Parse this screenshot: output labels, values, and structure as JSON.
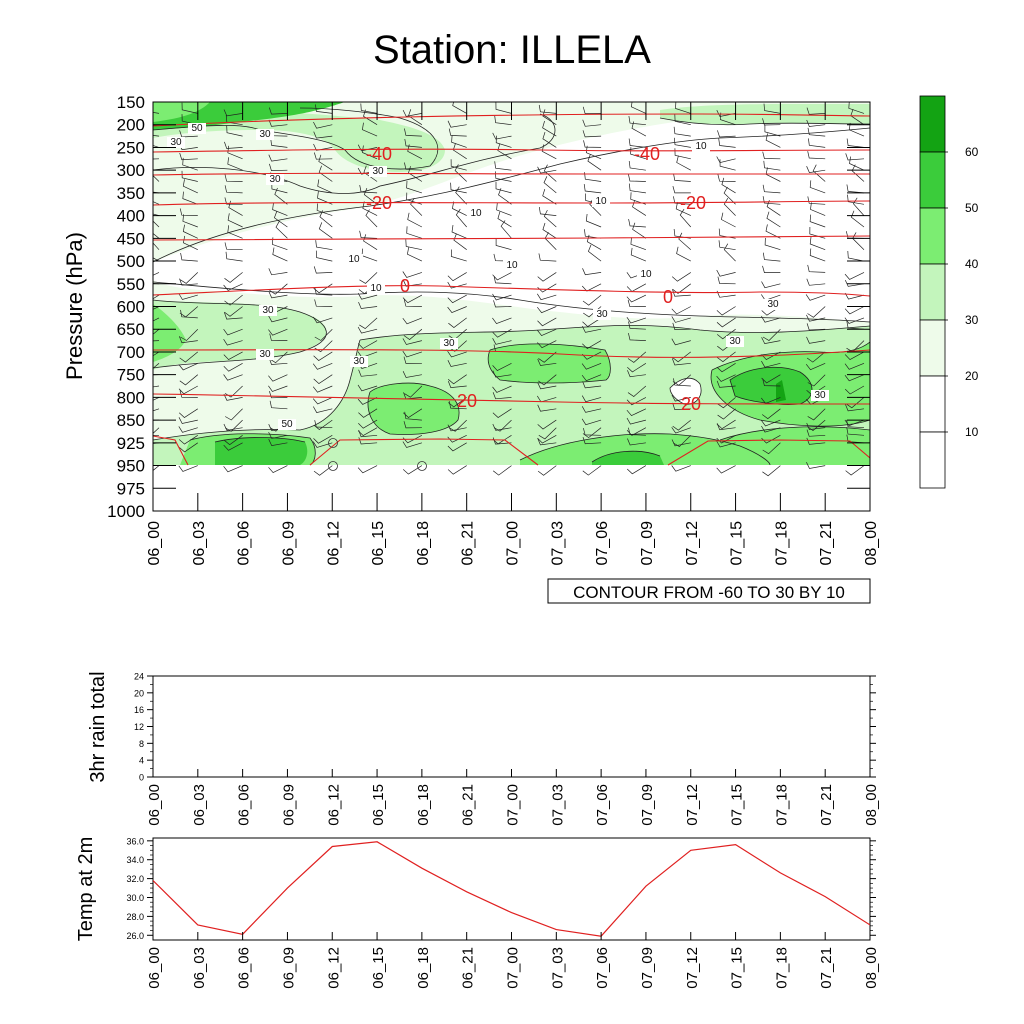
{
  "title": "Station: ILLELA",
  "chart_data": [
    {
      "type": "contour",
      "name": "pressure-time section",
      "ylabel": "Pressure (hPa)",
      "yticks": [
        150,
        200,
        250,
        300,
        350,
        400,
        450,
        500,
        550,
        600,
        650,
        700,
        750,
        800,
        850,
        925,
        950,
        975,
        1000
      ],
      "xticks": [
        "06_00",
        "06_03",
        "06_06",
        "06_09",
        "06_12",
        "06_15",
        "06_18",
        "06_21",
        "07_00",
        "07_03",
        "07_06",
        "07_09",
        "07_12",
        "07_15",
        "07_18",
        "07_21",
        "08_00"
      ],
      "contour_info": "CONTOUR FROM -60 TO 30 BY 10",
      "fill_levels": [
        10,
        20,
        30,
        40,
        50,
        60
      ],
      "fill_colors": [
        "#ffffff",
        "#ffffff",
        "#eefbea",
        "#c3f5bc",
        "#7ced72",
        "#3bcc3b",
        "#13a313"
      ],
      "black_contour_labels": [
        "50",
        "30",
        "30",
        "30",
        "30",
        "10",
        "10",
        "10",
        "10",
        "10",
        "10",
        "10",
        "30",
        "30",
        "30",
        "30",
        "30",
        "30",
        "30",
        "50",
        "30"
      ],
      "temperature_line_labels": [
        "-40",
        "-40",
        "-20",
        "-20",
        "0",
        "0",
        "20",
        "20"
      ],
      "temperature_levels_hPa": [
        {
          "label": "-40",
          "p": 255
        },
        {
          "label": "-20",
          "p": 370
        },
        {
          "label": "0",
          "p": 568
        },
        {
          "label": "20",
          "p": 800
        }
      ]
    },
    {
      "type": "line",
      "name": "3hr rain total",
      "ylabel": "3hr rain total",
      "ylim": [
        0,
        24
      ],
      "yticks": [
        "0",
        "4",
        "8",
        "12",
        "16",
        "20",
        "24"
      ],
      "xticks": [
        "06_00",
        "06_03",
        "06_06",
        "06_09",
        "06_12",
        "06_15",
        "06_18",
        "06_21",
        "07_00",
        "07_03",
        "07_06",
        "07_09",
        "07_12",
        "07_15",
        "07_18",
        "07_21",
        "08_00"
      ],
      "values": [
        0,
        0,
        0,
        0,
        0,
        0,
        0,
        0,
        0,
        0,
        0,
        0,
        0,
        0,
        0,
        0,
        0
      ]
    },
    {
      "type": "line",
      "name": "Temp at 2m",
      "ylabel": "Temp at 2m",
      "ylim": [
        25.5,
        36.3
      ],
      "yticks": [
        "26.0",
        "28.0",
        "30.0",
        "32.0",
        "34.0",
        "36.0"
      ],
      "xticks": [
        "06_00",
        "06_03",
        "06_06",
        "06_09",
        "06_12",
        "06_15",
        "06_18",
        "06_21",
        "07_00",
        "07_03",
        "07_06",
        "07_09",
        "07_12",
        "07_15",
        "07_18",
        "07_21",
        "08_00"
      ],
      "values": [
        31.8,
        27.1,
        26.1,
        31.0,
        35.4,
        35.9,
        33.1,
        30.6,
        28.4,
        26.6,
        25.9,
        31.2,
        35.0,
        35.6,
        32.6,
        30.1,
        27.1
      ],
      "line_color": "#e02020"
    }
  ]
}
